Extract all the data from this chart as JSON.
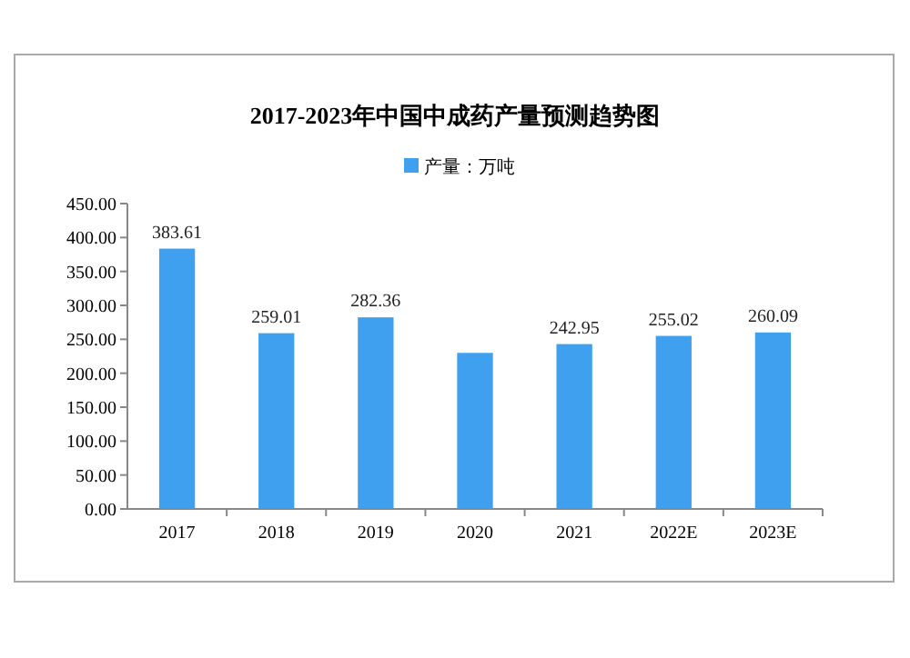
{
  "chart_data": {
    "type": "bar",
    "title": "2017-2023年中国中成药产量预测趋势图",
    "categories": [
      "2017",
      "2018",
      "2019",
      "2020",
      "2021",
      "2022E",
      "2023E"
    ],
    "series": [
      {
        "name": "产量：万吨",
        "color": "#3fa0f0",
        "values": [
          383.61,
          259.01,
          282.36,
          230,
          242.95,
          255.02,
          260.09
        ],
        "value_labels": [
          "383.61",
          "259.01",
          "282.36",
          null,
          "242.95",
          "255.02",
          "260.09"
        ]
      }
    ],
    "ylim": [
      0,
      450
    ],
    "yticks": [
      {
        "value": 0,
        "label": "0.00"
      },
      {
        "value": 50,
        "label": "50.00"
      },
      {
        "value": 100,
        "label": "100.00"
      },
      {
        "value": 150,
        "label": "150.00"
      },
      {
        "value": 200,
        "label": "200.00"
      },
      {
        "value": 250,
        "label": "250.00"
      },
      {
        "value": 300,
        "label": "300.00"
      },
      {
        "value": 350,
        "label": "350.00"
      },
      {
        "value": 400,
        "label": "400.00"
      },
      {
        "value": 450,
        "label": "450.00"
      }
    ],
    "legend": "top",
    "grid": false
  }
}
